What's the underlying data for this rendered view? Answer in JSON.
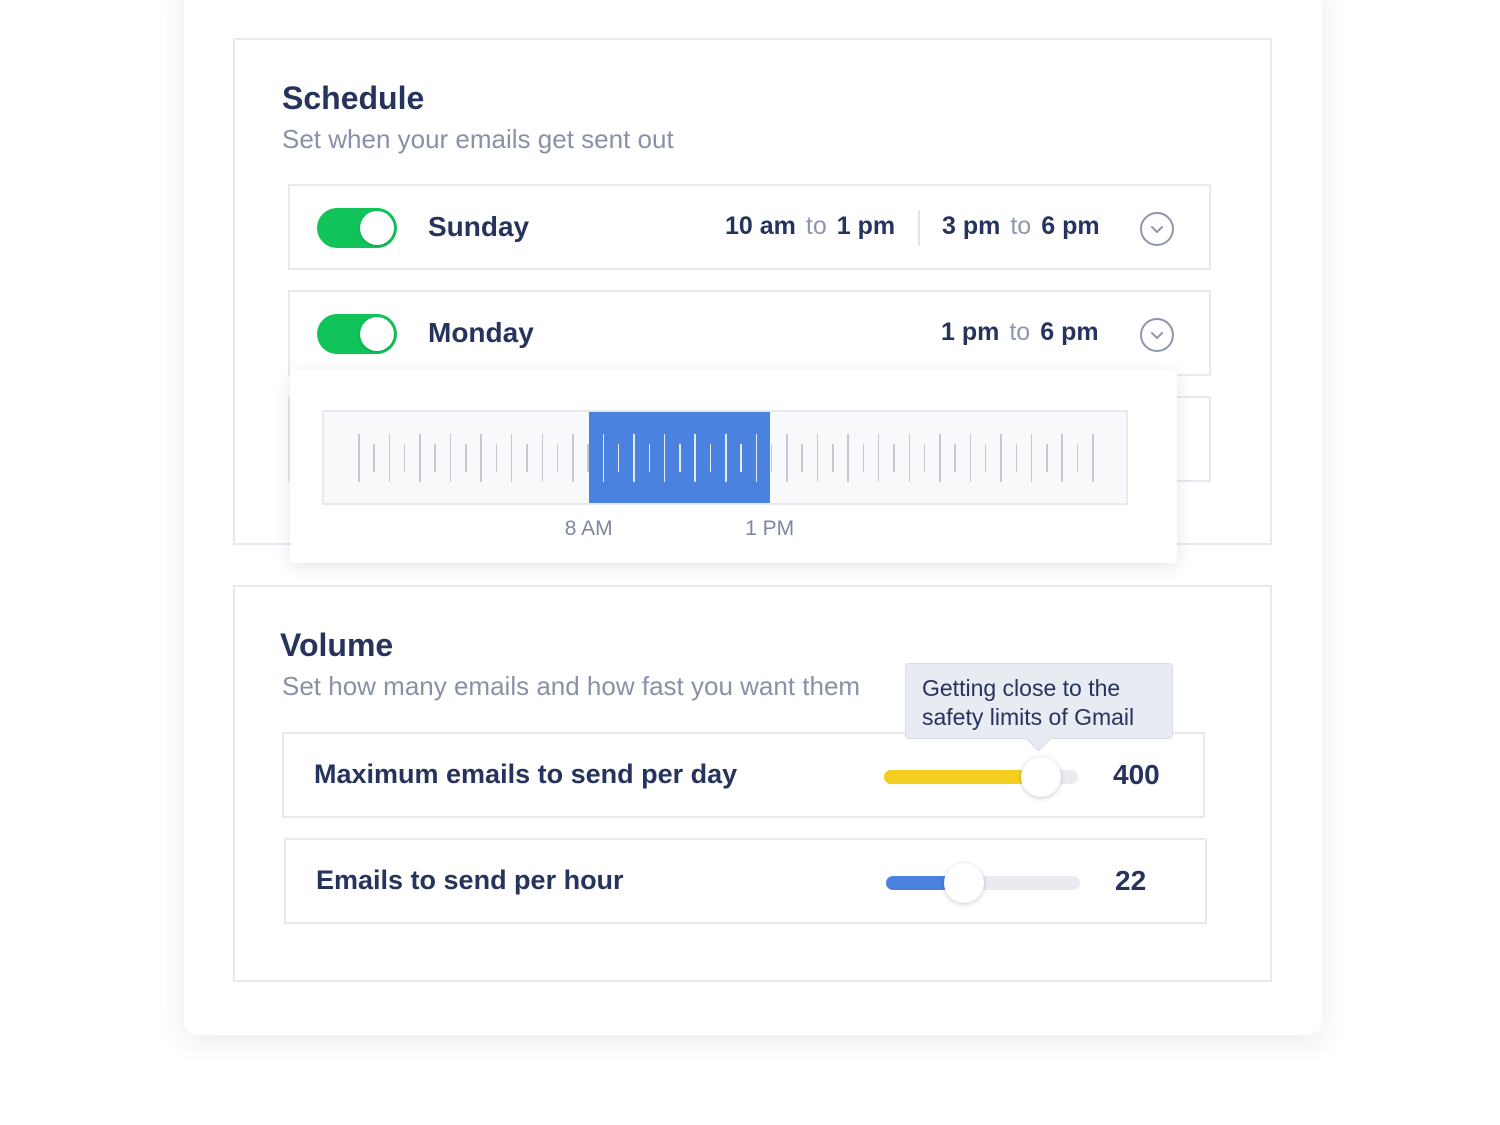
{
  "schedule": {
    "title": "Schedule",
    "subtitle": "Set when your emails get sent out",
    "days": [
      {
        "name": "Sunday",
        "enabled": true,
        "ranges": [
          {
            "from": "10 am",
            "to_word": "to",
            "to": "1 pm"
          },
          {
            "from": "3 pm",
            "to_word": "to",
            "to": "6 pm"
          }
        ],
        "expand_icon": "chevron-down-icon"
      },
      {
        "name": "Monday",
        "enabled": true,
        "ranges": [
          {
            "from": "1 pm",
            "to_word": "to",
            "to": "6 pm"
          }
        ],
        "expand_icon": "chevron-down-icon"
      }
    ],
    "timeline": {
      "selection_start_label": "8 AM",
      "selection_end_label": "1 PM",
      "selection_start_hour": 8,
      "selection_end_hour": 13,
      "hours_shown": 24
    }
  },
  "volume": {
    "title": "Volume",
    "subtitle": "Set how many emails and how fast you want them",
    "tooltip": {
      "line1": "Getting close to the",
      "line2": "safety limits of Gmail"
    },
    "rows": [
      {
        "label": "Maximum emails to send per day",
        "value": "400",
        "fill_fraction": 0.81,
        "fill_color": "#f4cf1f"
      },
      {
        "label": "Emails to send per hour",
        "value": "22",
        "fill_fraction": 0.4,
        "fill_color": "#4b82df"
      }
    ]
  },
  "colors": {
    "toggle_on": "#11c45a",
    "selection": "#4b82df",
    "text_primary": "#26335d",
    "text_secondary": "#8991a6"
  }
}
